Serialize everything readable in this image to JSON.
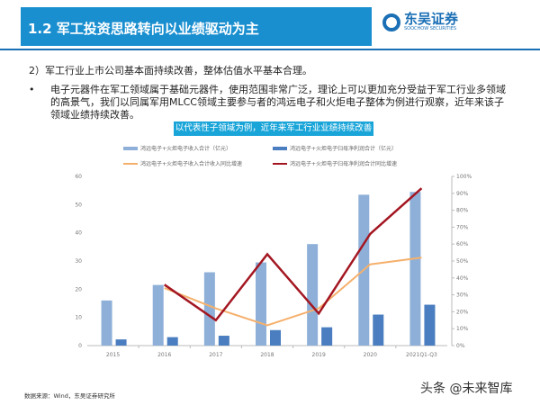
{
  "header": {
    "title": "1.2 军工投资思路转向以业绩驱动为主",
    "logo_name": "东吴证券",
    "logo_en": "SOOCHOW SECURITIES"
  },
  "body": {
    "point1": "2）军工行业上市公司基本面持续改善，整体估值水平基本合理。",
    "bullet": "•",
    "point2": "电子元器件在军工领域属于基础元器件，使用范围非常广泛，理论上可以更加充分受益于军工行业多领域的高景气，我们以同属军用MLCC领域主要参与者的鸿远电子和火炬电子整体为例进行观察，近年来该子领域业绩持续改善。"
  },
  "chart_data": {
    "type": "bar+line",
    "title": "以代表性子领域为例，近年来军工行业业绩持续改善",
    "categories": [
      "2015",
      "2016",
      "2017",
      "2018",
      "2019",
      "2020",
      "2021Q1-Q3"
    ],
    "y_left": {
      "range": [
        0,
        60
      ],
      "ticks": [
        "0",
        "10",
        "20",
        "30",
        "40",
        "50",
        "60"
      ]
    },
    "y_right": {
      "range": [
        0,
        100
      ],
      "ticks": [
        "0%",
        "10%",
        "20%",
        "30%",
        "40%",
        "50%",
        "60%",
        "70%",
        "80%",
        "90%",
        "100%"
      ]
    },
    "legend_placement": "top",
    "series": [
      {
        "name": "鸿远电子+火炬电子收入合计（亿元）",
        "type": "bar",
        "axis": "left",
        "color": "#8eb0d8",
        "values": [
          16,
          21.5,
          26,
          29.5,
          36,
          53.5,
          54.5
        ]
      },
      {
        "name": "鸿远电子+火炬电子归母净利润合计（亿元）",
        "type": "bar",
        "axis": "left",
        "color": "#4a7ec0",
        "values": [
          2.2,
          3,
          3.5,
          5.5,
          6.5,
          11,
          14.5
        ]
      },
      {
        "name": "鸿远电子+火炬电子收入合计收入同比增速",
        "type": "line",
        "axis": "right",
        "color": "#f5b06c",
        "values": [
          null,
          34,
          22,
          12,
          22,
          48,
          52
        ]
      },
      {
        "name": "鸿远电子+火炬电子归母净利润合计同比增速",
        "type": "line",
        "axis": "right",
        "color": "#a31621",
        "values": [
          null,
          36,
          15,
          54,
          19,
          66,
          93
        ]
      }
    ]
  },
  "footer": {
    "source": "数据来源：Wind，东吴证券研究所",
    "watermark": "头条 @未来智库"
  }
}
